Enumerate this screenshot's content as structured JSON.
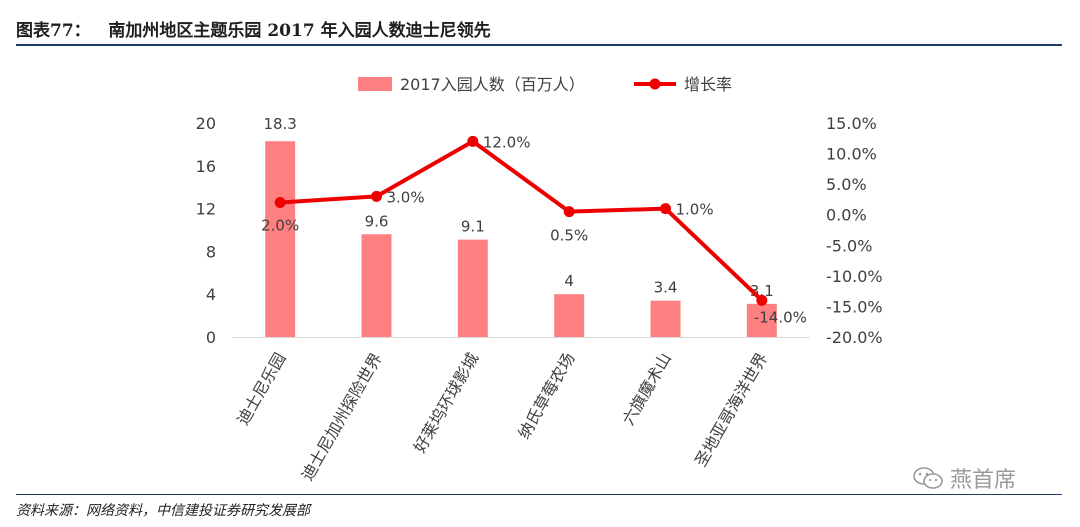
{
  "header": {
    "title": "图表77：   南加州地区主题乐园 2017 年入园人数迪士尼领先"
  },
  "footer": {
    "source": "资料来源：网络资料，中信建投证券研究发展部"
  },
  "watermark": {
    "text": "燕首席",
    "icon": "wechat-icon"
  },
  "colors": {
    "bar": "#ff8080",
    "line": "#ee0000",
    "title_rule": "#1f3864"
  },
  "chart_data": {
    "type": "bar",
    "categories": [
      "迪士尼乐园",
      "迪士尼加州探险世界",
      "好莱坞环球影城",
      "纳氏草莓农场",
      "六旗魔术山",
      "圣地亚哥海洋世界"
    ],
    "series": [
      {
        "name": "2017入园人数（百万人）",
        "type": "bar",
        "axis": "left",
        "values": [
          18.3,
          9.6,
          9.1,
          4,
          3.4,
          3.1
        ],
        "labels": [
          "18.3",
          "9.6",
          "9.1",
          "4",
          "3.4",
          "3.1"
        ]
      },
      {
        "name": "增长率",
        "type": "line",
        "axis": "right",
        "values": [
          2.0,
          3.0,
          12.0,
          0.5,
          1.0,
          -14.0
        ],
        "labels": [
          "2.0%",
          "3.0%",
          "12.0%",
          "0.5%",
          "1.0%",
          "-14.0%"
        ]
      }
    ],
    "y_left": {
      "min": 0,
      "max": 20,
      "ticks": [
        "0",
        "4",
        "8",
        "12",
        "16",
        "20"
      ]
    },
    "y_right": {
      "min": -20,
      "max": 15,
      "ticks": [
        "-20.0%",
        "-15.0%",
        "-10.0%",
        "-5.0%",
        "0.0%",
        "5.0%",
        "10.0%",
        "15.0%"
      ]
    },
    "legend_position": "top-center",
    "grid": false
  }
}
